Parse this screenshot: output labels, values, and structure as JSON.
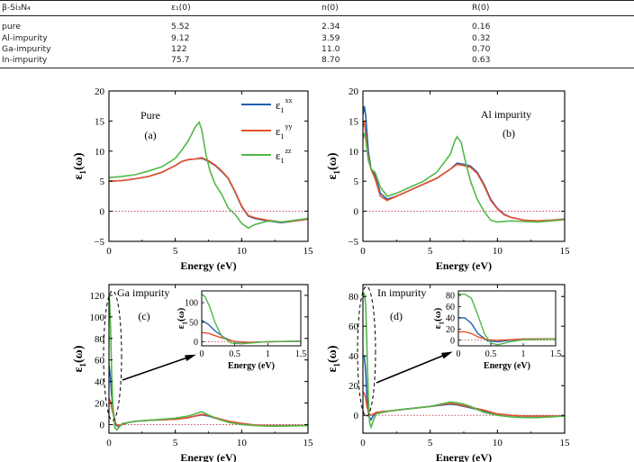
{
  "table": {
    "headers": [
      "β-Si₃N₄",
      "ε₁(0)",
      "n(0)",
      "R(0)"
    ],
    "rows": [
      [
        "pure",
        "5.52",
        "2.34",
        "0.16"
      ],
      [
        "Al-impurity",
        "9.12",
        "3.59",
        "0.32"
      ],
      [
        "Ga-impurity",
        "122",
        "11.0",
        "0.70"
      ],
      [
        "In-impurity",
        "75.7",
        "8.70",
        "0.63"
      ]
    ]
  },
  "legend": {
    "xx": "xx",
    "yy": "yy",
    "zz": "zz",
    "eps": "ε",
    "sub": "1"
  },
  "colors": {
    "xx": "#2060b0",
    "yy": "#e8502a",
    "zz": "#52b848"
  },
  "chart_data": [
    {
      "type": "line",
      "panel": "(a)",
      "annotation": "Pure",
      "xlabel": "Energy (eV)",
      "ylabel": "ε1(ω)",
      "xlim": [
        0,
        15
      ],
      "ylim": [
        -5,
        20
      ],
      "xticks": [
        "0",
        "5",
        "10",
        "15"
      ],
      "yticks": [
        "−5",
        "0",
        "5",
        "10",
        "15",
        "20"
      ],
      "series": [
        {
          "name": "ε1 xx",
          "x": [
            0,
            1,
            2,
            3,
            4,
            5,
            5.5,
            6,
            6.5,
            7,
            7.5,
            8,
            8.5,
            9,
            9.5,
            10,
            10.5,
            11,
            12,
            13,
            14,
            15
          ],
          "y": [
            5,
            5.1,
            5.4,
            5.8,
            6.5,
            7.6,
            8.3,
            8.6,
            8.7,
            8.8,
            8.3,
            7.6,
            6.6,
            5.4,
            3.2,
            0.8,
            -0.8,
            -1.2,
            -1.6,
            -1.9,
            -1.6,
            -1.3
          ]
        },
        {
          "name": "ε1 yy",
          "x": [
            0,
            1,
            2,
            3,
            4,
            5,
            5.5,
            6,
            6.5,
            7,
            7.5,
            8,
            8.5,
            9,
            9.5,
            10,
            10.5,
            11,
            12,
            13,
            14,
            15
          ],
          "y": [
            5,
            5.1,
            5.4,
            5.8,
            6.5,
            7.6,
            8.3,
            8.6,
            8.7,
            8.9,
            8.4,
            7.7,
            6.7,
            5.5,
            3.3,
            0.9,
            -0.7,
            -1.1,
            -1.5,
            -1.8,
            -1.6,
            -1.3
          ]
        },
        {
          "name": "ε1 zz",
          "x": [
            0,
            1,
            2,
            3,
            4,
            5,
            5.5,
            6,
            6.5,
            6.8,
            7,
            7.3,
            7.6,
            8,
            8.5,
            9,
            9.5,
            10,
            10.5,
            11,
            12,
            13,
            14,
            15
          ],
          "y": [
            5.6,
            5.8,
            6.1,
            6.7,
            7.4,
            8.8,
            10.2,
            11.8,
            14,
            14.8,
            13.5,
            9.5,
            6.8,
            4.5,
            2.8,
            0.5,
            -0.5,
            -2,
            -2.8,
            -2.2,
            -1.6,
            -1.8,
            -1.5,
            -1.2
          ]
        }
      ]
    },
    {
      "type": "line",
      "panel": "(b)",
      "annotation": "Al impurity",
      "xlabel": "Energy (eV)",
      "ylabel": "ε1(ω)",
      "xlim": [
        0,
        15
      ],
      "ylim": [
        -5,
        20
      ],
      "xticks": [
        "0",
        "5",
        "10",
        "15"
      ],
      "yticks": [
        "−5",
        "0",
        "5",
        "10",
        "15",
        "20"
      ],
      "series": [
        {
          "name": "ε1 xx",
          "x": [
            0,
            0.1,
            0.2,
            0.4,
            0.6,
            0.9,
            1.3,
            1.8,
            2.5,
            3.5,
            4.5,
            5.5,
            6.5,
            7,
            7.5,
            8,
            8.5,
            9,
            9.5,
            10,
            10.5,
            11,
            12,
            13,
            14,
            15
          ],
          "y": [
            16,
            17.5,
            16,
            10,
            7,
            6,
            3,
            2,
            2.5,
            3.5,
            4.5,
            5.5,
            7,
            8,
            7.8,
            7.5,
            6.5,
            4.5,
            2,
            0.5,
            -0.5,
            -1,
            -1.5,
            -1.6,
            -1.5,
            -1.3
          ]
        },
        {
          "name": "ε1 yy",
          "x": [
            0,
            0.1,
            0.2,
            0.4,
            0.6,
            0.9,
            1.3,
            1.8,
            2.5,
            3.5,
            4.5,
            5.5,
            6.5,
            7,
            7.5,
            8,
            8.5,
            9,
            9.5,
            10,
            10.5,
            11,
            12,
            13,
            14,
            15
          ],
          "y": [
            14,
            15,
            13,
            9,
            7,
            5.5,
            2.5,
            1.8,
            2.5,
            3.5,
            4.5,
            5.5,
            7,
            7.8,
            7.6,
            7.3,
            6.3,
            4.3,
            1.8,
            0.4,
            -0.6,
            -1,
            -1.5,
            -1.6,
            -1.5,
            -1.3
          ]
        },
        {
          "name": "ε1 zz",
          "x": [
            0,
            0.1,
            0.2,
            0.4,
            0.6,
            0.9,
            1.3,
            1.8,
            2.5,
            3.5,
            4.5,
            5.5,
            6.5,
            6.8,
            7,
            7.3,
            7.6,
            8,
            8.5,
            9,
            9.5,
            10,
            11,
            12,
            13,
            14,
            15
          ],
          "y": [
            12,
            13,
            12,
            8.5,
            7,
            6.5,
            4,
            2.5,
            3,
            4,
            5,
            6.5,
            9.5,
            11.5,
            12.4,
            11.5,
            8.5,
            5,
            2,
            0,
            -1.5,
            -1.8,
            -1.6,
            -1.7,
            -1.8,
            -1.6,
            -1.4
          ]
        }
      ]
    },
    {
      "type": "line",
      "panel": "(c)",
      "annotation": "Ga impurity",
      "xlabel": "Energy (eV)",
      "ylabel": "ε1(ω)",
      "xlim": [
        0,
        15
      ],
      "ylim": [
        -8,
        130
      ],
      "xticks": [
        "0",
        "5",
        "10",
        "15"
      ],
      "yticks": [
        "0",
        "20",
        "40",
        "60",
        "80",
        "100",
        "120"
      ],
      "series": [
        {
          "name": "ε1 xx",
          "x": [
            0,
            0.1,
            0.2,
            0.35,
            0.5,
            0.7,
            1,
            1.5,
            2,
            3,
            4,
            5,
            6,
            6.5,
            7,
            7.5,
            8,
            9,
            10,
            11,
            12,
            13,
            14,
            15
          ],
          "y": [
            55,
            45,
            28,
            10,
            0,
            -2,
            0,
            2,
            3,
            4,
            4.5,
            5,
            6.5,
            8,
            9,
            8,
            6,
            3,
            1,
            -0.5,
            -1,
            -1,
            -1,
            -1
          ]
        },
        {
          "name": "ε1 yy",
          "x": [
            0,
            0.1,
            0.2,
            0.35,
            0.5,
            0.7,
            1,
            1.5,
            2,
            3,
            4,
            5,
            6,
            6.5,
            7,
            7.5,
            8,
            9,
            10,
            11,
            12,
            13,
            14,
            15
          ],
          "y": [
            24,
            22,
            16,
            8,
            1,
            -1,
            0,
            2,
            3,
            4,
            4.5,
            5,
            6.5,
            8,
            9.5,
            8.5,
            6.5,
            3,
            1,
            -0.5,
            -1,
            -1,
            -1,
            -1
          ]
        },
        {
          "name": "ε1 zz",
          "x": [
            0,
            0.05,
            0.12,
            0.2,
            0.3,
            0.45,
            0.6,
            0.8,
            1,
            1.5,
            2,
            3,
            4,
            5,
            6,
            6.5,
            7,
            7.5,
            8,
            9,
            10,
            11,
            12,
            13,
            14,
            15
          ],
          "y": [
            122,
            115,
            90,
            50,
            15,
            -3,
            -5,
            -2,
            1,
            2,
            3,
            4,
            5,
            6,
            8,
            10,
            12,
            9,
            6,
            2,
            0,
            -1,
            -1.5,
            -1.5,
            -1.2,
            -1
          ]
        }
      ],
      "inset": {
        "xlim": [
          0,
          1.5
        ],
        "ylim": [
          -10,
          130
        ],
        "xticks": [
          "0",
          "0.5",
          "1",
          "1.5"
        ],
        "yticks": [
          "0",
          "50",
          "100"
        ],
        "xlabel": "Energy (eV)",
        "ylabel": "ε1(ω)"
      }
    },
    {
      "type": "line",
      "panel": "(d)",
      "annotation": "In impurity",
      "xlabel": "Energy (eV)",
      "ylabel": "ε1(ω)",
      "xlim": [
        0,
        15
      ],
      "ylim": [
        -12,
        88
      ],
      "xticks": [
        "0",
        "5",
        "10",
        "15"
      ],
      "yticks": [
        "0",
        "20",
        "40",
        "60",
        "80"
      ],
      "series": [
        {
          "name": "ε1 xx",
          "x": [
            0,
            0.1,
            0.2,
            0.3,
            0.45,
            0.6,
            0.8,
            1,
            1.5,
            2,
            3,
            4,
            5,
            6,
            6.5,
            7,
            8,
            9,
            10,
            11,
            12,
            13,
            14,
            15
          ],
          "y": [
            40,
            40,
            30,
            12,
            -1,
            -3,
            0,
            2,
            2.5,
            3,
            4,
            5,
            6,
            7,
            7.5,
            7,
            5,
            3,
            1,
            0,
            -0.5,
            -0.5,
            -0.5,
            -0.5
          ]
        },
        {
          "name": "ε1 yy",
          "x": [
            0,
            0.1,
            0.2,
            0.3,
            0.45,
            0.6,
            0.8,
            1,
            1.5,
            2,
            3,
            4,
            5,
            6,
            6.5,
            7,
            8,
            9,
            10,
            11,
            12,
            13,
            14,
            15
          ],
          "y": [
            15,
            15,
            12,
            6,
            1,
            0,
            1,
            2,
            2.5,
            3,
            4,
            5,
            6,
            7.5,
            8,
            7.5,
            5.5,
            3.5,
            1,
            0,
            -0.5,
            -0.5,
            -0.5,
            -0.5
          ]
        },
        {
          "name": "ε1 zz",
          "x": [
            0,
            0.1,
            0.2,
            0.3,
            0.4,
            0.5,
            0.6,
            0.8,
            1,
            1.5,
            2,
            3,
            4,
            5,
            6,
            6.5,
            7,
            7.5,
            8,
            8.5,
            9,
            10,
            11,
            12,
            13,
            14,
            15
          ],
          "y": [
            82,
            82,
            75,
            45,
            12,
            -5,
            -8,
            -3,
            1,
            2,
            3,
            4,
            5,
            6,
            8,
            9,
            8.5,
            7.5,
            6,
            4,
            2,
            0,
            -1,
            -1.5,
            -1.5,
            -1,
            -0.5
          ]
        }
      ],
      "inset": {
        "xlim": [
          0,
          1.5
        ],
        "ylim": [
          -10,
          88
        ],
        "xticks": [
          "0",
          "0.5",
          "1",
          "1.5"
        ],
        "yticks": [
          "0",
          "20",
          "40",
          "60",
          "80"
        ],
        "xlabel": "Energy (eV)",
        "ylabel": "ε1(ω)"
      }
    }
  ]
}
